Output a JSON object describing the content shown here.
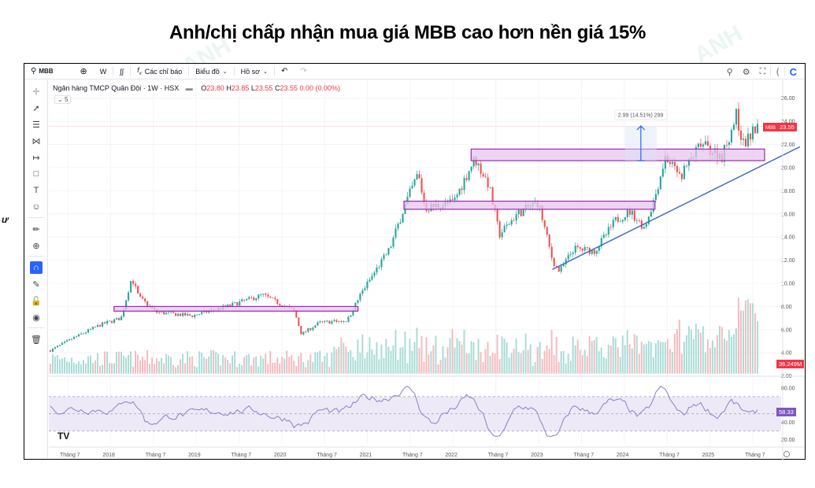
{
  "page_title": "Anh/chị chấp nhận mua giá MBB cao hơn nền giá 15%",
  "toolbar": {
    "symbol": "MBB",
    "interval": "W",
    "indicators_label": "Các chỉ báo",
    "chart_type_label": "Biểu đồ",
    "profile_label": "Hồ sơ",
    "logo": "C"
  },
  "legend": {
    "name": "Ngân hàng TMCP Quân Đội · 1W · HSX",
    "open_label": "O",
    "open": "23.80",
    "high_label": "H",
    "high": "23.85",
    "low_label": "L",
    "low": "23.55",
    "close_label": "C",
    "close": "23.55",
    "change": "0.00 (0.00%)",
    "collapsed_count": "5"
  },
  "tags": {
    "price_symbol": "MBB",
    "price_value": "23.55",
    "volume_value": "36.249M",
    "rsi_value": "58.33"
  },
  "measure_label": "2.99 (14.51%) 299",
  "side_text": "ư",
  "colors": {
    "up": "#26a69a",
    "down": "#ef5350",
    "vol_up": "#a7dcd5",
    "vol_down": "#f7b9bd",
    "zone_fill": "#e7c6ef",
    "zone_border": "#9c27b0",
    "trendline": "#4472c4",
    "rsi_line": "#8b80c8",
    "rsi_band": "#ede9f7",
    "price_tag": "#f23645",
    "rsi_tag": "#7e57c2",
    "accent": "#2962ff"
  },
  "chart_data": {
    "type": "candlestick",
    "title": "Ngân hàng TMCP Quân Đội · 1W · HSX",
    "symbol": "MBB",
    "timeframe": "1W",
    "price_axis": {
      "ticks": [
        "26.00",
        "24.00",
        "22.00",
        "20.00",
        "18.00",
        "16.00",
        "14.00",
        "12.00",
        "10.00",
        "8.00",
        "6.00",
        "4.00",
        "2.00"
      ],
      "range": [
        1.5,
        27
      ]
    },
    "rsi_axis": {
      "ticks": [
        "80.00",
        "40.00",
        "20.00"
      ],
      "bands": [
        30,
        50,
        70
      ]
    },
    "time_axis": [
      "Tháng 7",
      "2018",
      "Tháng 7",
      "2019",
      "Tháng 7",
      "2020",
      "Tháng 7",
      "2021",
      "Tháng 7",
      "2022",
      "Tháng 7",
      "2023",
      "Tháng 7",
      "2024",
      "Tháng 7",
      "2025",
      "Tháng 7"
    ],
    "price_path_keypoints": [
      {
        "t": 0.0,
        "p": 4.2
      },
      {
        "t": 0.03,
        "p": 5.2
      },
      {
        "t": 0.07,
        "p": 6.4
      },
      {
        "t": 0.1,
        "p": 7.0
      },
      {
        "t": 0.115,
        "p": 10.5
      },
      {
        "t": 0.125,
        "p": 8.8
      },
      {
        "t": 0.15,
        "p": 7.5
      },
      {
        "t": 0.2,
        "p": 7.2
      },
      {
        "t": 0.25,
        "p": 8.0
      },
      {
        "t": 0.3,
        "p": 9.0
      },
      {
        "t": 0.345,
        "p": 7.6
      },
      {
        "t": 0.355,
        "p": 5.6
      },
      {
        "t": 0.38,
        "p": 6.6
      },
      {
        "t": 0.42,
        "p": 6.8
      },
      {
        "t": 0.44,
        "p": 9.2
      },
      {
        "t": 0.48,
        "p": 13.0
      },
      {
        "t": 0.5,
        "p": 16.5
      },
      {
        "t": 0.52,
        "p": 19.5
      },
      {
        "t": 0.53,
        "p": 16.5
      },
      {
        "t": 0.57,
        "p": 17.0
      },
      {
        "t": 0.6,
        "p": 20.8
      },
      {
        "t": 0.62,
        "p": 18.5
      },
      {
        "t": 0.635,
        "p": 14.2
      },
      {
        "t": 0.66,
        "p": 16.0
      },
      {
        "t": 0.69,
        "p": 17.0
      },
      {
        "t": 0.71,
        "p": 12.0
      },
      {
        "t": 0.72,
        "p": 11.0
      },
      {
        "t": 0.74,
        "p": 13.0
      },
      {
        "t": 0.77,
        "p": 12.8
      },
      {
        "t": 0.8,
        "p": 15.5
      },
      {
        "t": 0.82,
        "p": 16.2
      },
      {
        "t": 0.84,
        "p": 14.8
      },
      {
        "t": 0.855,
        "p": 17.5
      },
      {
        "t": 0.87,
        "p": 21.0
      },
      {
        "t": 0.89,
        "p": 19.2
      },
      {
        "t": 0.92,
        "p": 22.0
      },
      {
        "t": 0.95,
        "p": 21.0
      },
      {
        "t": 0.97,
        "p": 24.5
      },
      {
        "t": 0.98,
        "p": 22.0
      },
      {
        "t": 1.0,
        "p": 23.55
      }
    ],
    "zones": [
      {
        "label": "zone-2018-2021",
        "from_t": 0.09,
        "to_t": 0.435,
        "low": 7.6,
        "high": 8.0
      },
      {
        "label": "zone-2021-2024",
        "from_t": 0.5,
        "to_t": 0.855,
        "low": 16.4,
        "high": 17.1
      },
      {
        "label": "zone-2022-2025",
        "from_t": 0.595,
        "to_t": 1.01,
        "low": 20.6,
        "high": 21.6
      }
    ],
    "trendline": {
      "from": {
        "t": 0.71,
        "p": 11.2
      },
      "to": {
        "t": 1.06,
        "p": 21.8
      }
    },
    "measure": {
      "t": 0.835,
      "from_p": 20.6,
      "to_p": 23.6,
      "label": "2.99 (14.51%) 299"
    },
    "last_price": 23.55,
    "last_rsi": 58.33,
    "last_volume": "36.249M"
  }
}
